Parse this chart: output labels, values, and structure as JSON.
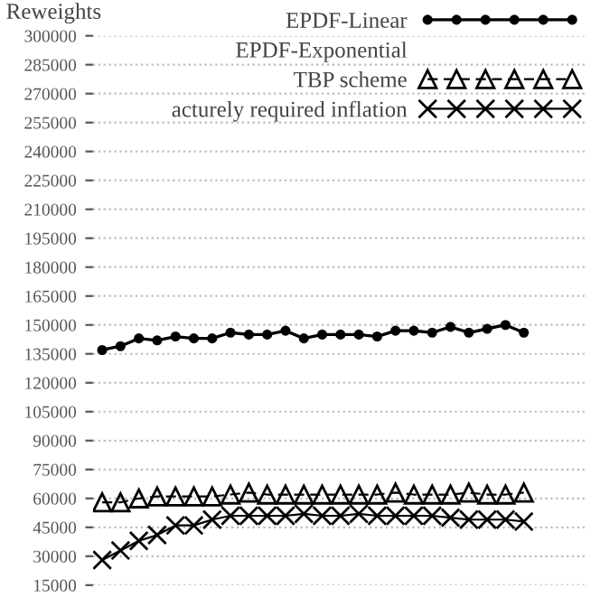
{
  "chart_data": {
    "type": "line",
    "ylabel": "Reweights",
    "categories": [
      null,
      null,
      null,
      null,
      null,
      null,
      null,
      null,
      null,
      null,
      null,
      null,
      null,
      null,
      null,
      null,
      null,
      null,
      null,
      null,
      null,
      null,
      null,
      null
    ],
    "series": [
      {
        "name": "EPDF-Linear",
        "color": "#000000",
        "marker": "circle",
        "line_style": "solid",
        "values": [
          137000,
          139000,
          143000,
          142000,
          144000,
          143000,
          143000,
          146000,
          145000,
          145000,
          147000,
          143000,
          145000,
          145000,
          145000,
          144000,
          147000,
          147000,
          146000,
          149000,
          146000,
          148000,
          150000,
          146000
        ]
      },
      {
        "name": "EPDF-Exponential",
        "values": [
          null,
          null,
          null,
          null,
          null,
          null,
          null,
          null,
          null,
          null,
          null,
          null,
          null,
          null,
          null,
          null,
          null,
          null,
          null,
          null,
          null,
          null,
          null,
          null
        ]
      },
      {
        "name": "TBP scheme",
        "color": "#000000",
        "marker": "triangle",
        "line_style": "dashed",
        "values": [
          58000,
          58000,
          60000,
          61000,
          61000,
          61000,
          61000,
          62000,
          63000,
          62000,
          62000,
          62000,
          62000,
          62000,
          62000,
          62000,
          63000,
          62000,
          62000,
          62000,
          63000,
          62000,
          62000,
          63000
        ]
      },
      {
        "name": "acturely required inflation",
        "color": "#000000",
        "marker": "cross",
        "line_style": "solid",
        "values": [
          28000,
          33000,
          38000,
          41000,
          46000,
          46000,
          49000,
          51000,
          51000,
          51000,
          51000,
          52000,
          51000,
          51000,
          52000,
          51000,
          51000,
          51000,
          51000,
          50000,
          49000,
          49000,
          49000,
          48000
        ]
      }
    ],
    "ylim": [
      15000,
      300000
    ],
    "yticks": [
      15000,
      30000,
      45000,
      60000,
      75000,
      90000,
      105000,
      120000,
      135000,
      150000,
      165000,
      180000,
      195000,
      210000,
      225000,
      240000,
      255000,
      270000,
      285000,
      300000
    ],
    "grid": "y",
    "legend": "top right",
    "tick_labels": "y"
  }
}
